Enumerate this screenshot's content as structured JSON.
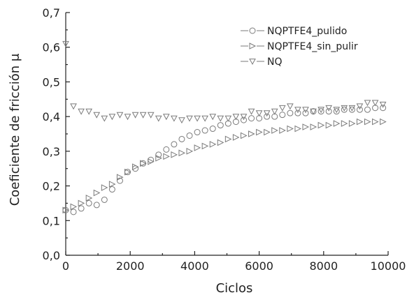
{
  "chart_data": {
    "type": "scatter",
    "xlabel": "Ciclos",
    "ylabel": "Coeficiente de fricción μ",
    "xlim": [
      0,
      10000
    ],
    "ylim": [
      0,
      0.7
    ],
    "x_ticks": [
      "0",
      "2000",
      "4000",
      "6000",
      "8000",
      "10000"
    ],
    "y_ticks": [
      "0,0",
      "0,1",
      "0,2",
      "0,3",
      "0,4",
      "0,5",
      "0,6",
      "0,7"
    ],
    "grid": false,
    "legend_position": "top-right",
    "series": [
      {
        "name": "NQPTFE4_pulido",
        "marker": "circle",
        "color": "#7a7a7a",
        "x": [
          0,
          240,
          480,
          720,
          960,
          1200,
          1440,
          1680,
          1920,
          2160,
          2400,
          2640,
          2880,
          3120,
          3360,
          3600,
          3840,
          4080,
          4320,
          4560,
          4800,
          5040,
          5280,
          5520,
          5760,
          6000,
          6240,
          6480,
          6720,
          6960,
          7200,
          7440,
          7680,
          7920,
          8160,
          8400,
          8640,
          8880,
          9120,
          9360,
          9600,
          9840
        ],
        "y": [
          0.13,
          0.125,
          0.135,
          0.15,
          0.145,
          0.16,
          0.19,
          0.215,
          0.24,
          0.25,
          0.265,
          0.275,
          0.29,
          0.305,
          0.32,
          0.335,
          0.345,
          0.355,
          0.36,
          0.365,
          0.375,
          0.38,
          0.385,
          0.39,
          0.395,
          0.395,
          0.4,
          0.4,
          0.405,
          0.41,
          0.41,
          0.41,
          0.415,
          0.415,
          0.415,
          0.415,
          0.42,
          0.42,
          0.42,
          0.42,
          0.425,
          0.425
        ]
      },
      {
        "name": "NQPTFE4_sin_pulir",
        "marker": "triangle-right",
        "color": "#7a7a7a",
        "x": [
          0,
          240,
          480,
          720,
          960,
          1200,
          1440,
          1680,
          1920,
          2160,
          2400,
          2640,
          2880,
          3120,
          3360,
          3600,
          3840,
          4080,
          4320,
          4560,
          4800,
          5040,
          5280,
          5520,
          5760,
          6000,
          6240,
          6480,
          6720,
          6960,
          7200,
          7440,
          7680,
          7920,
          8160,
          8400,
          8640,
          8880,
          9120,
          9360,
          9600,
          9840
        ],
        "y": [
          0.13,
          0.14,
          0.15,
          0.165,
          0.18,
          0.195,
          0.205,
          0.225,
          0.24,
          0.255,
          0.265,
          0.27,
          0.28,
          0.285,
          0.29,
          0.295,
          0.3,
          0.31,
          0.315,
          0.32,
          0.325,
          0.335,
          0.34,
          0.345,
          0.35,
          0.355,
          0.355,
          0.36,
          0.36,
          0.365,
          0.365,
          0.37,
          0.37,
          0.375,
          0.375,
          0.38,
          0.38,
          0.38,
          0.385,
          0.385,
          0.385,
          0.385
        ]
      },
      {
        "name": "NQ",
        "marker": "triangle-down",
        "color": "#7a7a7a",
        "x": [
          0,
          240,
          480,
          720,
          960,
          1200,
          1440,
          1680,
          1920,
          2160,
          2400,
          2640,
          2880,
          3120,
          3360,
          3600,
          3840,
          4080,
          4320,
          4560,
          4800,
          5040,
          5280,
          5520,
          5760,
          6000,
          6240,
          6480,
          6720,
          6960,
          7200,
          7440,
          7680,
          7920,
          8160,
          8400,
          8640,
          8880,
          9120,
          9360,
          9600,
          9840
        ],
        "y": [
          0.61,
          0.43,
          0.415,
          0.415,
          0.405,
          0.395,
          0.4,
          0.405,
          0.4,
          0.405,
          0.405,
          0.405,
          0.395,
          0.4,
          0.395,
          0.39,
          0.395,
          0.395,
          0.395,
          0.4,
          0.395,
          0.395,
          0.4,
          0.4,
          0.415,
          0.41,
          0.41,
          0.415,
          0.425,
          0.43,
          0.42,
          0.42,
          0.415,
          0.42,
          0.425,
          0.42,
          0.425,
          0.425,
          0.43,
          0.44,
          0.44,
          0.435
        ]
      }
    ]
  }
}
